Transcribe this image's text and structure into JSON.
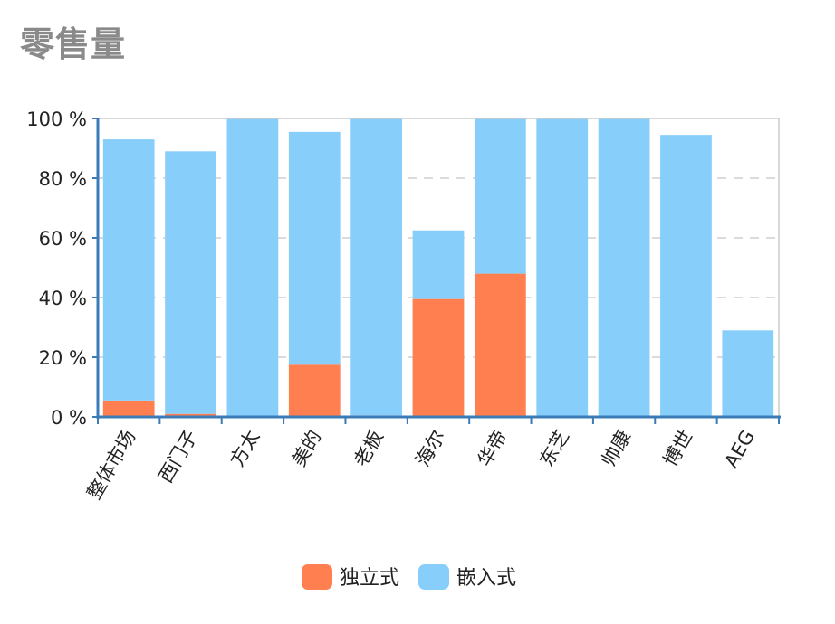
{
  "chart_data": {
    "type": "bar",
    "stacked": true,
    "title": "零售量",
    "xlabel": "",
    "ylabel": "",
    "categories": [
      "整体市场",
      "西门子",
      "方太",
      "美的",
      "老板",
      "海尔",
      "华帝",
      "东芝",
      "帅康",
      "博世",
      "AEG"
    ],
    "series": [
      {
        "name": "独立式",
        "color": "#FF7F50",
        "values": [
          5.5,
          1,
          0,
          17.5,
          0.5,
          39.5,
          48,
          0,
          0,
          0,
          0
        ]
      },
      {
        "name": "嵌入式",
        "color": "#87CEFA",
        "values": [
          87.5,
          88,
          100,
          78,
          99.5,
          23,
          52,
          100,
          100,
          94.5,
          29
        ]
      }
    ],
    "ylim": [
      0,
      100
    ],
    "yticks": [
      0,
      20,
      40,
      60,
      80,
      100
    ],
    "ytick_suffix": " %",
    "grid": true,
    "legend_position": "bottom-center"
  }
}
